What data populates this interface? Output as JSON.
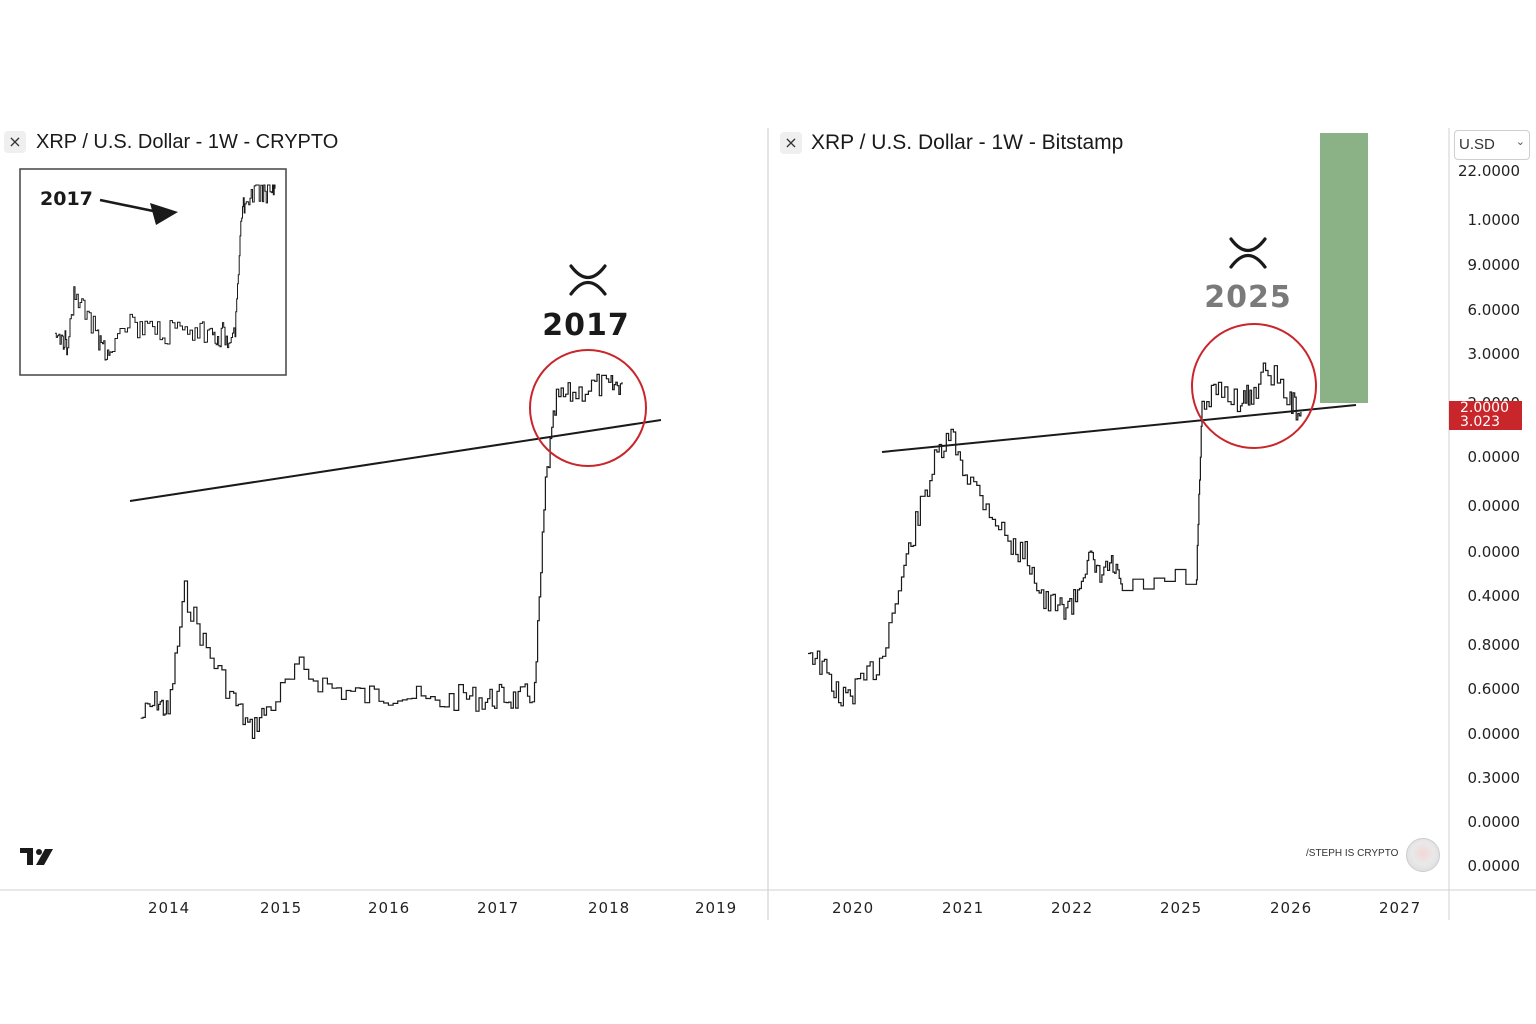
{
  "left_panel": {
    "title": "XRP / U.S. Dollar - 1W - CRYPTO",
    "close_glyph": "×",
    "inset_label": "2017",
    "annotation_year": "2017",
    "x_axis_labels": [
      "2014",
      "2015",
      "2016",
      "2017",
      "2018",
      "2019"
    ]
  },
  "right_panel": {
    "title": "XRP / U.S. Dollar - 1W - Bitstamp",
    "close_glyph": "×",
    "annotation_year": "2025",
    "x_axis_labels": [
      "2020",
      "2021",
      "2022",
      "2025",
      "2026",
      "2027"
    ],
    "currency_select": "U.SD",
    "currency_chevron": "⌄",
    "y_axis_labels": [
      "22.0000",
      "1.0000",
      "9.0000",
      "6.0000",
      "3.0000",
      "2.0000",
      "0.0000",
      "0.0000",
      "0.0000",
      "0.4000",
      "0.8000",
      "0.6000",
      "0.0000",
      "0.3000",
      "0.0000",
      "0.0000"
    ],
    "price_badge": [
      "2.0000",
      "3.023"
    ],
    "credit": "/STEPH IS CRYPTO"
  },
  "icons": [
    "close-icon",
    "xrp-logo-icon",
    "tradingview-logo-icon",
    "arrow-icon",
    "highlight-circle",
    "target-zone"
  ],
  "colors": {
    "line": "#1a1a1a",
    "circle": "#c9262c",
    "target_zone": "#8ab286",
    "badge": "#c9262c"
  },
  "chart_data": [
    {
      "type": "line",
      "title": "XRP / U.S. Dollar - 1W - CRYPTO",
      "x": [
        2013.75,
        2013.9,
        2014.0,
        2014.15,
        2014.35,
        2014.6,
        2014.75,
        2014.9,
        2015.2,
        2015.5,
        2015.8,
        2016.1,
        2016.4,
        2016.7,
        2016.9,
        2017.05,
        2017.2,
        2017.35,
        2017.45,
        2017.55,
        2017.7,
        2017.9,
        2018.05,
        2018.15
      ],
      "values": [
        0.0052,
        0.0065,
        0.0055,
        0.024,
        0.012,
        0.0065,
        0.0045,
        0.0058,
        0.0095,
        0.0075,
        0.0068,
        0.0072,
        0.0062,
        0.0068,
        0.0065,
        0.0068,
        0.0065,
        0.0072,
        0.09,
        0.25,
        0.27,
        0.3,
        0.29,
        0.31
      ],
      "trendline": {
        "x": [
          2013.55,
          2018.5
        ],
        "y": [
          0.024,
          0.29
        ]
      },
      "annotation": "2017",
      "inset": {
        "label": "2017",
        "shape": "price history with arrow pointing at 2017 spike"
      }
    },
    {
      "type": "line",
      "title": "XRP / U.S. Dollar - 1W - Bitstamp",
      "x": [
        2019.6,
        2019.75,
        2019.9,
        2020.05,
        2020.25,
        2020.45,
        2020.6,
        2020.75,
        2020.9,
        2021.05,
        2021.25,
        2021.45,
        2021.6,
        2021.75,
        2021.9,
        2022.05,
        2022.3,
        2022.5,
        2022.75,
        2022.95,
        2025.15,
        2025.2,
        2025.35,
        2025.55,
        2025.65,
        2025.8,
        2026.0,
        2026.1
      ],
      "values": [
        0.27,
        0.22,
        0.17,
        0.19,
        0.24,
        0.5,
        0.85,
        1.35,
        1.7,
        1.2,
        0.9,
        0.65,
        0.6,
        0.4,
        0.38,
        0.4,
        0.6,
        0.5,
        0.55,
        0.45,
        0.5,
        2.1,
        2.6,
        2.3,
        2.45,
        3.1,
        2.3,
        2.1
      ],
      "trendline": {
        "x": [
          2020.3,
          2026.6
        ],
        "y": [
          1.9,
          2.05
        ]
      },
      "annotation": "2025",
      "current_price": "3.023",
      "target_zone": {
        "from": "2.0000",
        "to": "22.0000"
      }
    }
  ]
}
